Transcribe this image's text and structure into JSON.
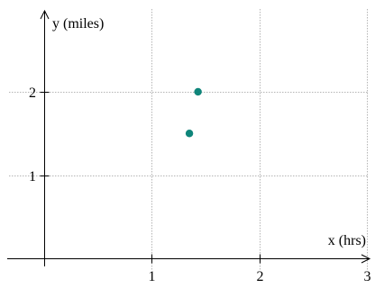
{
  "chart_data": {
    "type": "scatter",
    "title": "",
    "xlabel": "x (hrs)",
    "ylabel": "y (miles)",
    "xlim": [
      -0.05,
      3.0
    ],
    "ylim": [
      -0.3,
      2.9
    ],
    "x_ticks": [
      1,
      2,
      3
    ],
    "y_ticks": [
      1,
      2
    ],
    "x_tick_labels": [
      "1",
      "2",
      "3"
    ],
    "y_tick_labels": [
      "1",
      "2"
    ],
    "grid": true,
    "legend": "none",
    "series": [
      {
        "color": "#0f857a",
        "points": [
          {
            "x": 1.43,
            "y": 2.0
          },
          {
            "x": 1.35,
            "y": 1.5
          }
        ]
      }
    ]
  }
}
